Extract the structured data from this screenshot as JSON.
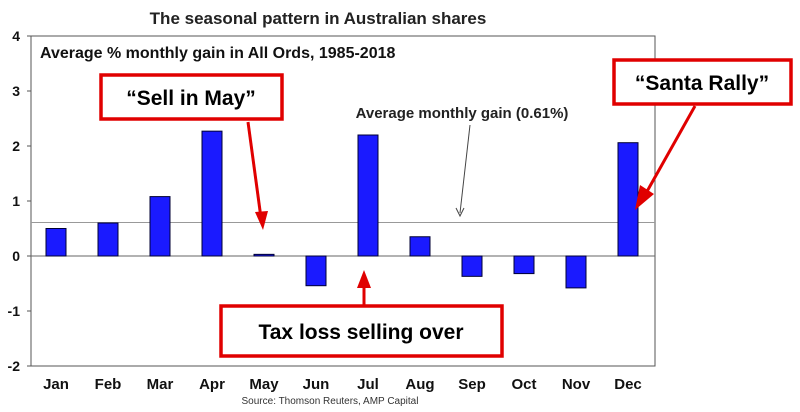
{
  "chart_data": {
    "type": "bar",
    "title": "The seasonal pattern in Australian shares",
    "subtitle": "Average % monthly gain in All Ords, 1985-2018",
    "categories": [
      "Jan",
      "Feb",
      "Mar",
      "Apr",
      "May",
      "Jun",
      "Jul",
      "Aug",
      "Sep",
      "Oct",
      "Nov",
      "Dec"
    ],
    "values": [
      0.5,
      0.6,
      1.08,
      2.27,
      0.03,
      -0.54,
      2.2,
      0.35,
      -0.37,
      -0.32,
      -0.58,
      2.06
    ],
    "ylim": [
      -2,
      4
    ],
    "yticks": [
      "4",
      "3",
      "2",
      "1",
      "0",
      "-1",
      "-2"
    ],
    "xlabel": "",
    "ylabel": "",
    "grid": false,
    "legend": "none",
    "bar_color": "#1a1aff",
    "reference_line": {
      "label": "Average monthly gain (0.61%)",
      "value": 0.61
    },
    "annotations": [
      {
        "text": "“Sell in May”",
        "month": "May"
      },
      {
        "text": "“Santa Rally”",
        "month": "Dec"
      },
      {
        "text": "Tax loss selling over",
        "month": "Jul"
      }
    ],
    "annotation_color": "#e00000",
    "source": "Source: Thomson Reuters, AMP Capital"
  }
}
